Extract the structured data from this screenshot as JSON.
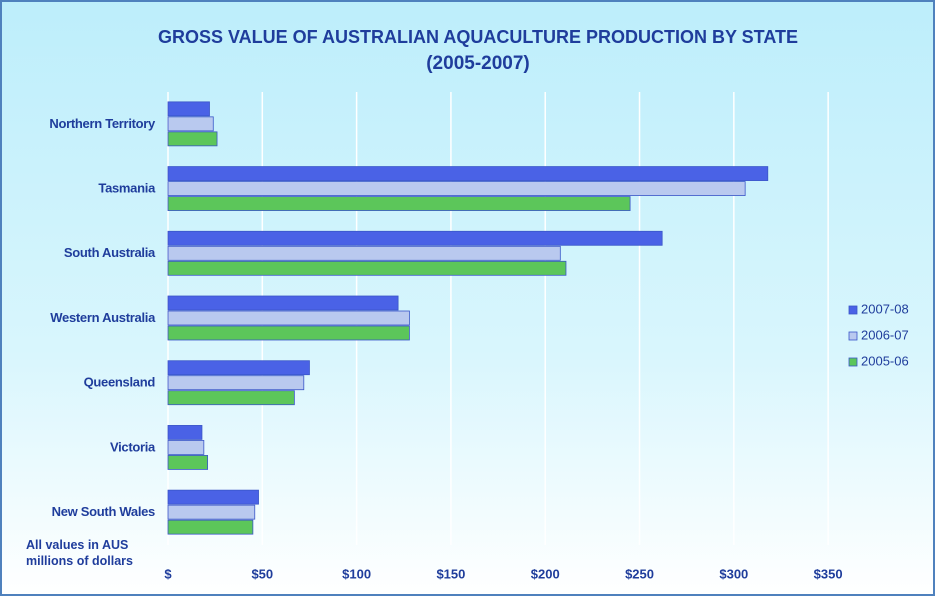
{
  "chart_data": {
    "type": "hbar",
    "title": "GROSS VALUE OF AUSTRALIAN AQUACULTURE PRODUCTION BY STATE",
    "subtitle": "(2005-2007)",
    "annotation": "All values in AUS millions of dollars",
    "categories": [
      "Northern Territory",
      "Tasmania",
      "South Australia",
      "Western Australia",
      "Queensland",
      "Victoria",
      "New South Wales"
    ],
    "series": [
      {
        "name": "2007-08",
        "color": "#4a62e6",
        "values": [
          22,
          318,
          262,
          122,
          75,
          18,
          48
        ]
      },
      {
        "name": "2006-07",
        "color": "#b9c9ef",
        "values": [
          24,
          306,
          208,
          128,
          72,
          19,
          46
        ]
      },
      {
        "name": "2005-06",
        "color": "#5cc65a",
        "values": [
          26,
          245,
          211,
          128,
          67,
          21,
          45
        ]
      }
    ],
    "xlim": [
      0,
      360
    ],
    "xticks": [
      {
        "value": 0,
        "label": "$"
      },
      {
        "value": 50,
        "label": "$50"
      },
      {
        "value": 100,
        "label": "$100"
      },
      {
        "value": 150,
        "label": "$150"
      },
      {
        "value": 200,
        "label": "$200"
      },
      {
        "value": 250,
        "label": "$250"
      },
      {
        "value": 300,
        "label": "$300"
      },
      {
        "value": 350,
        "label": "$350"
      }
    ],
    "grid": true,
    "legend": "right"
  }
}
